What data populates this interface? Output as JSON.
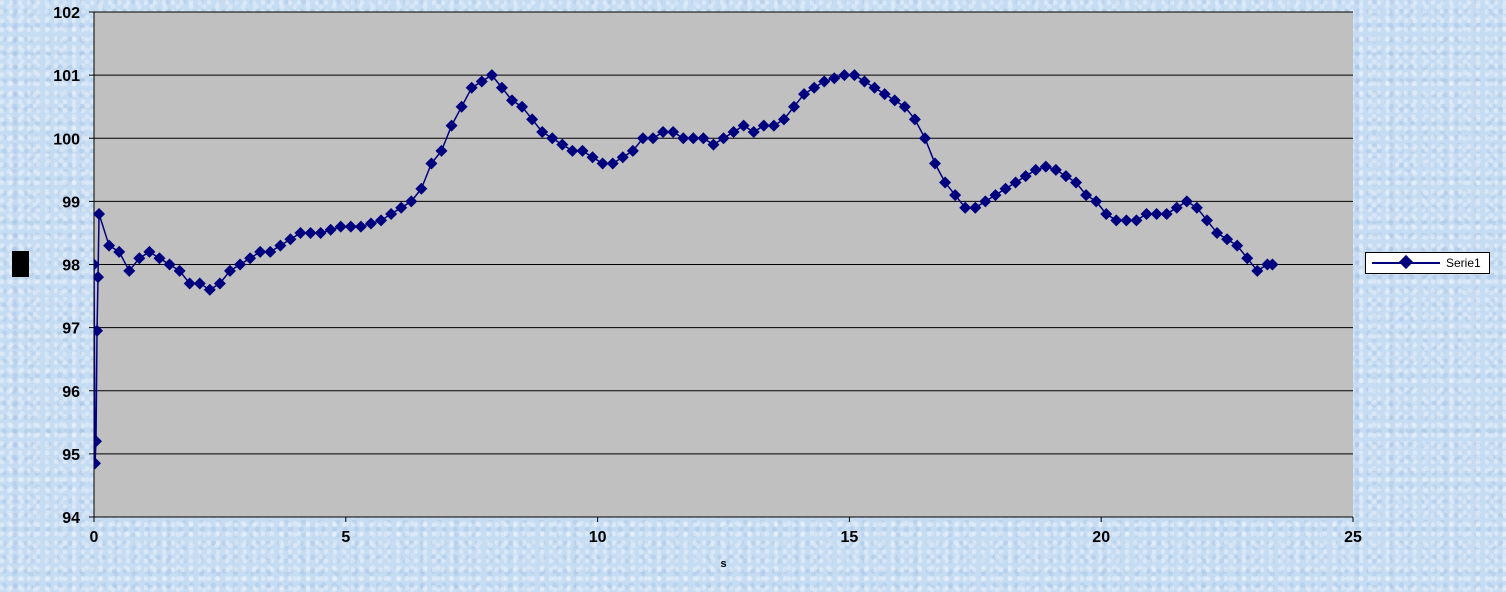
{
  "chart_data": {
    "type": "scatter",
    "title": "",
    "xlabel": "s",
    "ylabel": "",
    "xlim": [
      0,
      25
    ],
    "ylim": [
      94,
      102
    ],
    "xticks": [
      "0",
      "5",
      "10",
      "15",
      "20",
      "25"
    ],
    "yticks": [
      "94",
      "95",
      "96",
      "97",
      "98",
      "99",
      "100",
      "101",
      "102"
    ],
    "grid": "horizontal",
    "plot_background": "#c0c0c0",
    "legend_position": "right",
    "series": [
      {
        "name": "Serie1",
        "color": "#00007f",
        "marker": "diamond",
        "line": true,
        "x": [
          0,
          0.02,
          0.04,
          0.06,
          0.08,
          0.1,
          0.3,
          0.5,
          0.7,
          0.9,
          1.1,
          1.3,
          1.5,
          1.7,
          1.9,
          2.1,
          2.3,
          2.5,
          2.7,
          2.9,
          3.1,
          3.3,
          3.5,
          3.7,
          3.9,
          4.1,
          4.3,
          4.5,
          4.7,
          4.9,
          5.1,
          5.3,
          5.5,
          5.7,
          5.9,
          6.1,
          6.3,
          6.5,
          6.7,
          6.9,
          7.1,
          7.3,
          7.5,
          7.7,
          7.9,
          8.1,
          8.3,
          8.5,
          8.7,
          8.9,
          9.1,
          9.3,
          9.5,
          9.7,
          9.9,
          10.1,
          10.3,
          10.5,
          10.7,
          10.9,
          11.1,
          11.3,
          11.5,
          11.7,
          11.9,
          12.1,
          12.3,
          12.5,
          12.7,
          12.9,
          13.1,
          13.3,
          13.5,
          13.7,
          13.9,
          14.1,
          14.3,
          14.5,
          14.7,
          14.9,
          15.1,
          15.3,
          15.5,
          15.7,
          15.9,
          16.1,
          16.3,
          16.5,
          16.7,
          16.9,
          17.1,
          17.3,
          17.5,
          17.7,
          17.9,
          18.1,
          18.3,
          18.5,
          18.7,
          18.9,
          19.1,
          19.3,
          19.5,
          19.7,
          19.9,
          20.1,
          20.3,
          20.5,
          20.7,
          20.9,
          21.1,
          21.3,
          21.5,
          21.7,
          21.9,
          22.1,
          22.3,
          22.5,
          22.7,
          22.9,
          23.1,
          23.3,
          23.4
        ],
        "y": [
          98.0,
          94.85,
          95.2,
          96.95,
          97.8,
          98.8,
          98.3,
          98.2,
          97.9,
          98.1,
          98.2,
          98.1,
          98.0,
          97.9,
          97.7,
          97.7,
          97.6,
          97.7,
          97.9,
          98.0,
          98.1,
          98.2,
          98.2,
          98.3,
          98.4,
          98.5,
          98.5,
          98.5,
          98.55,
          98.6,
          98.6,
          98.6,
          98.65,
          98.7,
          98.8,
          98.9,
          99.0,
          99.2,
          99.6,
          99.8,
          100.2,
          100.5,
          100.8,
          100.9,
          101.0,
          100.8,
          100.6,
          100.5,
          100.3,
          100.1,
          100.0,
          99.9,
          99.8,
          99.8,
          99.7,
          99.6,
          99.6,
          99.7,
          99.8,
          100.0,
          100.0,
          100.1,
          100.1,
          100.0,
          100.0,
          100.0,
          99.9,
          100.0,
          100.1,
          100.2,
          100.1,
          100.2,
          100.2,
          100.3,
          100.5,
          100.7,
          100.8,
          100.9,
          100.95,
          101.0,
          101.0,
          100.9,
          100.8,
          100.7,
          100.6,
          100.5,
          100.3,
          100.0,
          99.6,
          99.3,
          99.1,
          98.9,
          98.9,
          99.0,
          99.1,
          99.2,
          99.3,
          99.4,
          99.5,
          99.55,
          99.5,
          99.4,
          99.3,
          99.1,
          99.0,
          98.8,
          98.7,
          98.7,
          98.7,
          98.8,
          98.8,
          98.8,
          98.9,
          99.0,
          98.9,
          98.7,
          98.5,
          98.4,
          98.3,
          98.1,
          97.9,
          98.0,
          98.0
        ]
      }
    ]
  }
}
